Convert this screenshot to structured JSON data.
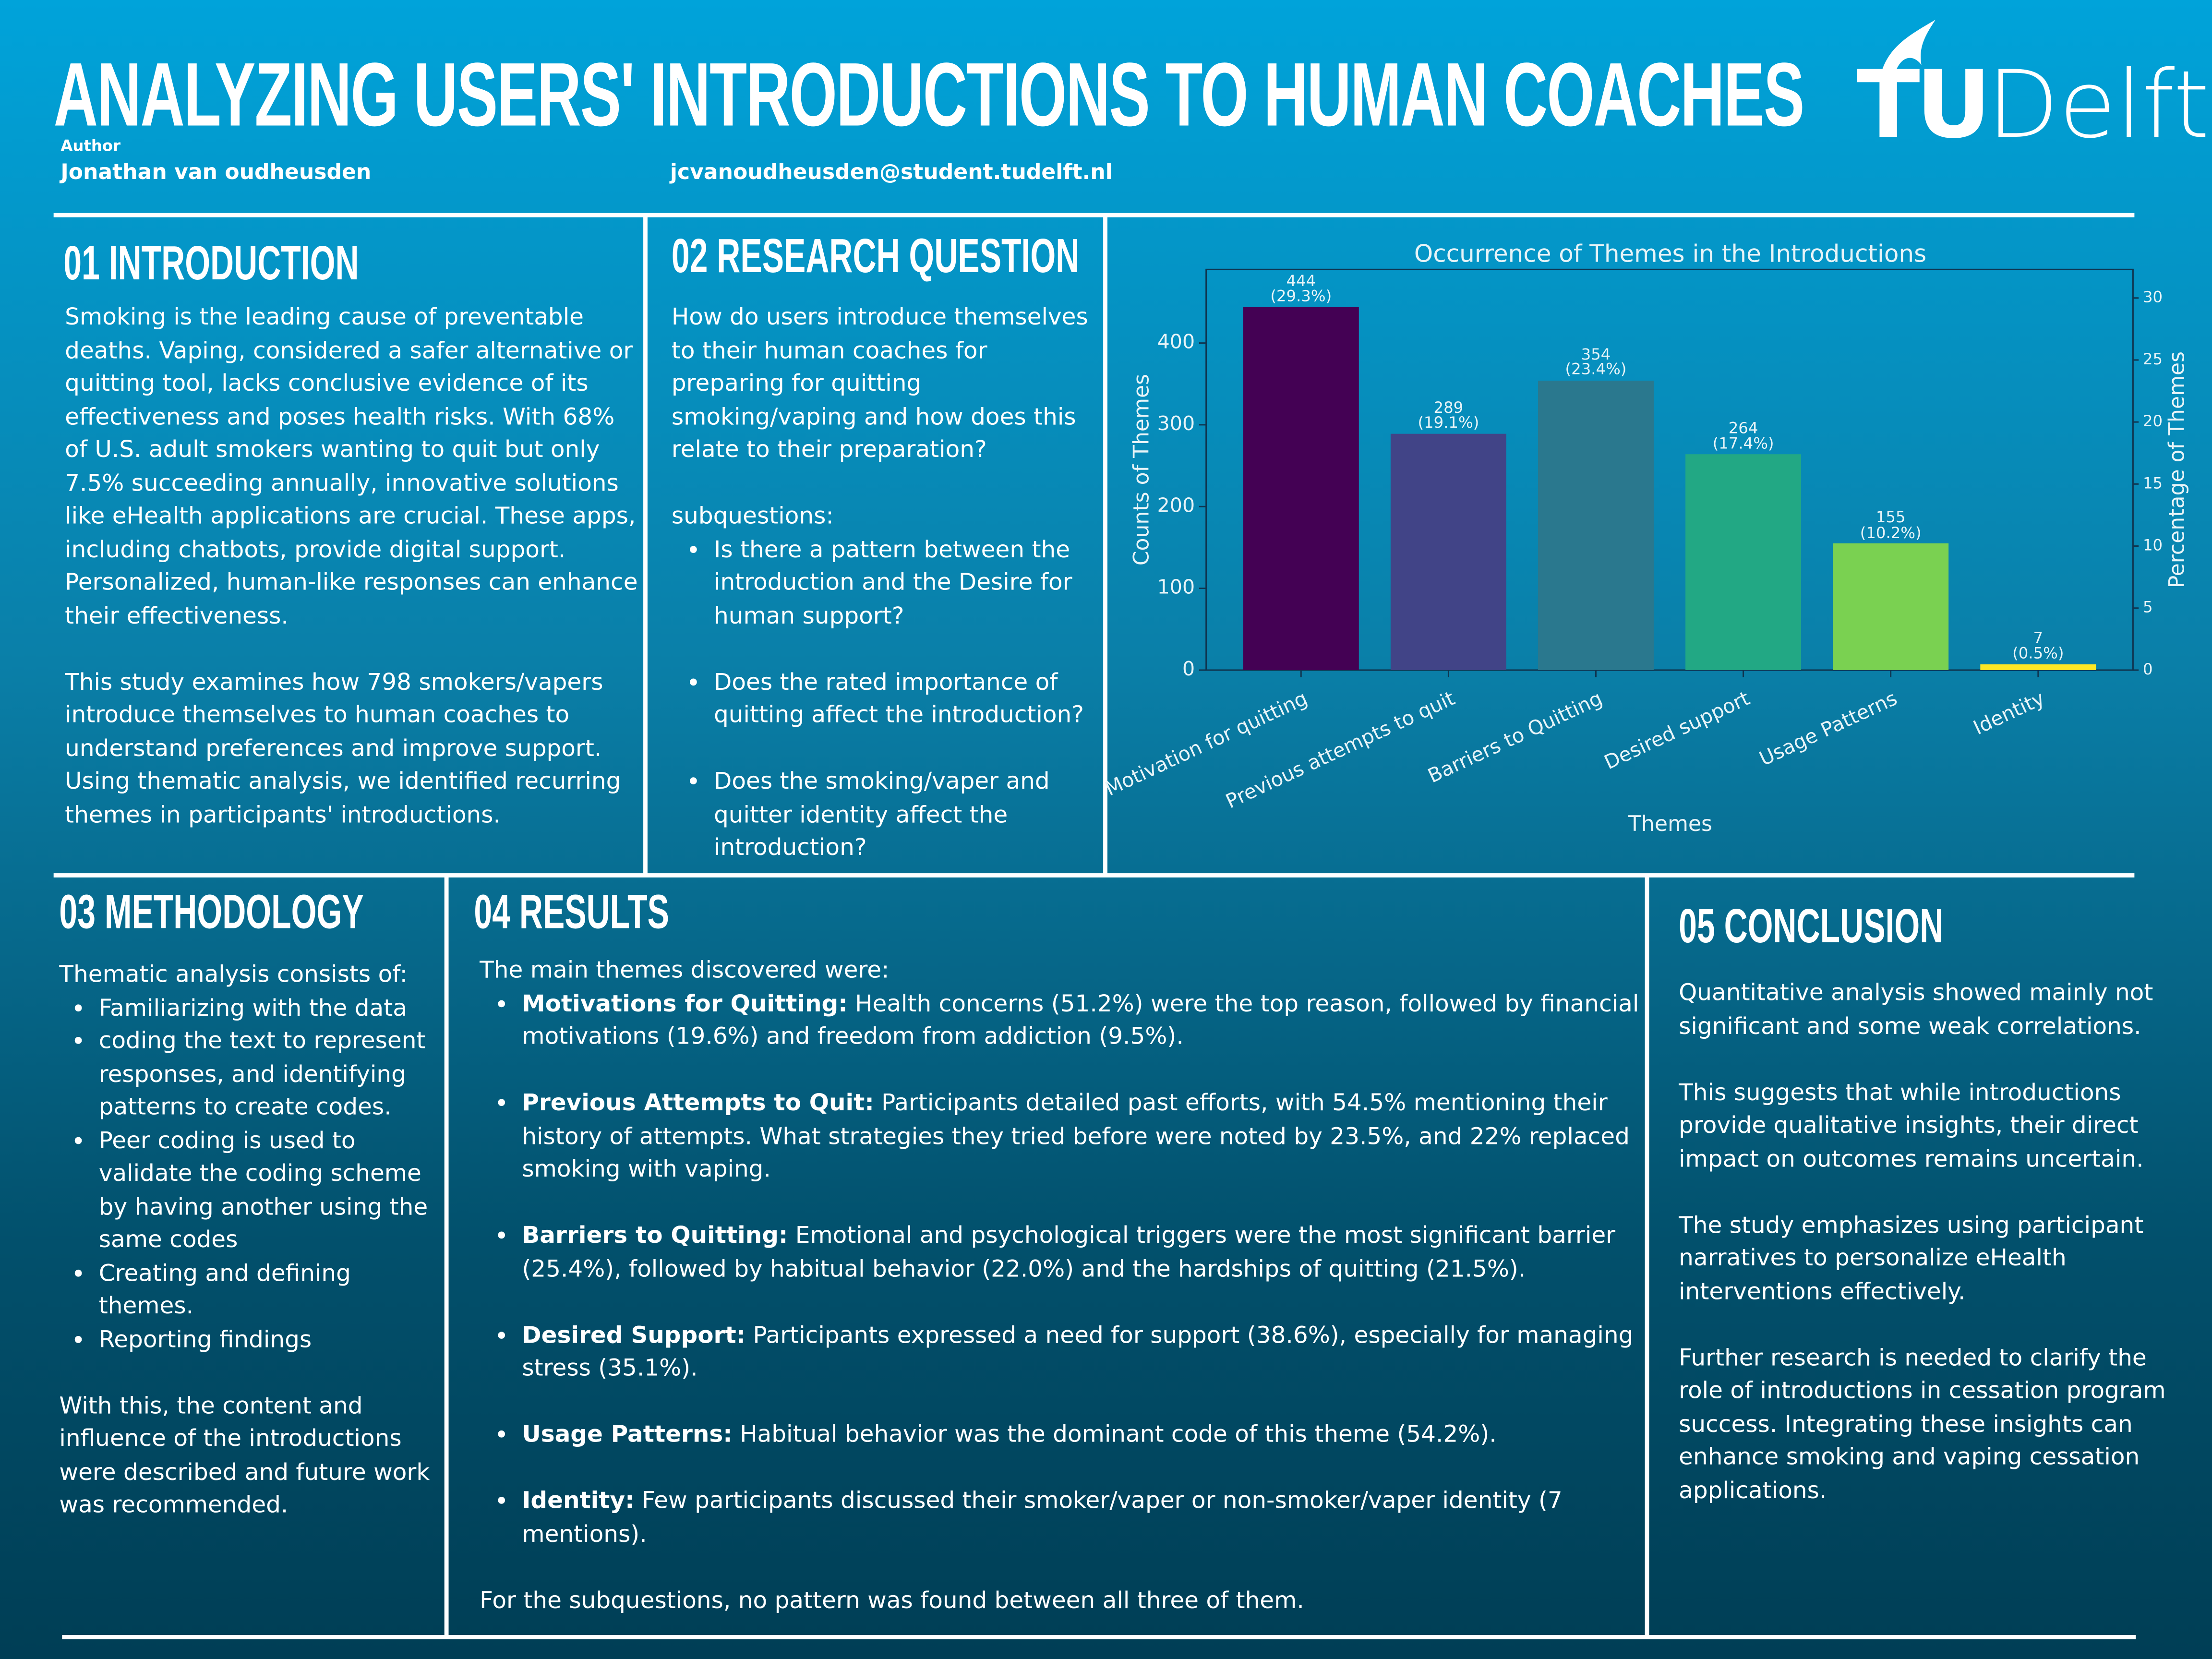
{
  "header": {
    "title": "ANALYZING USERS' INTRODUCTIONS TO HUMAN COACHES",
    "author_label": "Author",
    "author": "Jonathan van oudheusden",
    "email": "jcvanoudheusden@student.tudelft.nl",
    "logo_tu": "TU",
    "logo_delft": "Delft"
  },
  "introduction": {
    "heading": "01 INTRODUCTION",
    "paragraphs": [
      "Smoking is the leading cause of preventable deaths. Vaping, considered a safer alternative or quitting tool, lacks conclusive evidence of its effectiveness and poses health risks. With 68% of U.S. adult smokers wanting to quit but only 7.5% succeeding annually, innovative solutions like eHealth applications are crucial. These apps, including chatbots, provide digital support. Personalized, human-like responses can enhance their effectiveness.",
      "This study examines how 798 smokers/vapers introduce themselves to human coaches to understand preferences and improve support. Using thematic analysis, we identified recurring themes in participants' introductions."
    ]
  },
  "research_question": {
    "heading": "02 RESEARCH QUESTION",
    "question": "How do users introduce themselves to their human coaches for preparing for quitting smoking/vaping and how does this relate to their preparation?",
    "sub_label": "subquestions:",
    "items": [
      "Is there a pattern between the introduction and the Desire for human support?",
      "Does the rated importance of quitting affect the introduction?",
      "Does the smoking/vaper and quitter identity affect the introduction?"
    ]
  },
  "methodology": {
    "heading": "03 METHODOLOGY",
    "lead": "Thematic analysis consists of:",
    "items": [
      "Familiarizing with the data",
      "coding the text to represent responses, and identifying patterns to create codes.",
      "Peer coding is used to validate the coding scheme by having another using the same codes",
      "Creating and defining themes.",
      "Reporting findings"
    ],
    "closing": "With this, the content and influence of the introductions were described and future work was recommended."
  },
  "results": {
    "heading": "04 RESULTS",
    "lead": "The main themes discovered were:",
    "items": [
      {
        "term": "Motivations for Quitting:",
        "text": " Health concerns (51.2%) were the top reason, followed by financial motivations (19.6%) and freedom from addiction (9.5%)."
      },
      {
        "term": "Previous Attempts to Quit:",
        "text": " Participants detailed past efforts, with 54.5% mentioning their history of attempts. What strategies they tried before were noted by 23.5%, and 22% replaced smoking with vaping."
      },
      {
        "term": "Barriers to Quitting:",
        "text": " Emotional and psychological triggers were the most significant barrier (25.4%), followed by habitual behavior (22.0%) and the hardships of quitting (21.5%)."
      },
      {
        "term": "Desired Support:",
        "text": " Participants expressed a need for support (38.6%), especially for managing stress (35.1%)."
      },
      {
        "term": "Usage Patterns:",
        "text": " Habitual behavior was the dominant code of this theme (54.2%)."
      },
      {
        "term": "Identity:",
        "text": " Few participants discussed their smoker/vaper or non-smoker/vaper identity (7 mentions)."
      }
    ],
    "closing": "For the subquestions, no pattern was found between all three of them."
  },
  "conclusion": {
    "heading": "05 CONCLUSION",
    "paragraphs": [
      "Quantitative analysis showed mainly not significant and some weak correlations.",
      "This suggests that while introductions provide qualitative insights, their direct impact on outcomes remains uncertain.",
      "The study emphasizes using participant narratives to personalize eHealth interventions effectively.",
      "Further research is needed to clarify the role of introductions in cessation program success. Integrating these insights can enhance smoking and vaping cessation applications."
    ]
  },
  "chart_data": {
    "type": "bar",
    "title": "Occurrence of Themes in the Introductions",
    "x_label": "Themes",
    "y_label": "Counts of Themes",
    "y2_label": "Percentage of Themes",
    "categories": [
      "Motivation for quitting",
      "Previous attempts to quit",
      "Barriers to Quitting",
      "Desired support",
      "Usage Patterns",
      "Identity"
    ],
    "series": [
      {
        "values": [
          444,
          289,
          354,
          264,
          155,
          7
        ],
        "colors": [
          "#440154",
          "#414487",
          "#2a788e",
          "#22a884",
          "#7ad151",
          "#fde725"
        ]
      },
      {
        "axis": "y2",
        "values": [
          29.3,
          19.1,
          23.4,
          17.4,
          10.2,
          0.5
        ],
        "value_labels": [
          "(29.3%)",
          "(19.1%)",
          "(23.4%)",
          "(17.4%)",
          "(10.2%)",
          "(0.5%)"
        ]
      }
    ],
    "ylim": [
      0,
      490
    ],
    "yticks": [
      0,
      100,
      200,
      300,
      400
    ],
    "y2lim": [
      0,
      32.3
    ],
    "y2ticks": [
      0,
      5,
      10,
      15,
      20,
      25,
      30
    ]
  }
}
